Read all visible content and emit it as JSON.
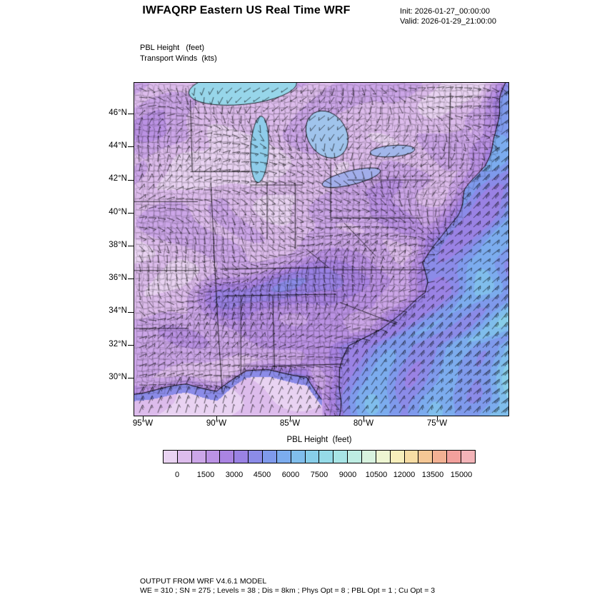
{
  "header": {
    "title": "IWFAQRP Eastern US Real Time WRF",
    "init_line": "Init: 2026-01-27_00:00:00",
    "valid_line": "Valid: 2026-01-29_21:00:00"
  },
  "map": {
    "field_label": "PBL Height   (feet)",
    "wind_label": "Transport Winds  (kts)",
    "lat_ticks": [
      "46°N",
      "44°N",
      "42°N",
      "40°N",
      "38°N",
      "36°N",
      "34°N",
      "32°N",
      "30°N"
    ],
    "lon_ticks": [
      "95°W",
      "90°W",
      "85°W",
      "80°W",
      "75°W"
    ]
  },
  "colorbar": {
    "title": "PBL Height  (feet)",
    "tick_labels": [
      "0",
      "1500",
      "3000",
      "4500",
      "6000",
      "7500",
      "9000",
      "10500",
      "12000",
      "13500",
      "15000"
    ],
    "colors": [
      "#E9D3F2",
      "#DDBCEC",
      "#CCA6E8",
      "#BB92E4",
      "#AA84E2",
      "#9A82E4",
      "#8B8BE8",
      "#7F9AEC",
      "#7CACEE",
      "#80BEEC",
      "#88CEE9",
      "#95DBE8",
      "#A7E5E6",
      "#BEEDE3",
      "#D8F3DF",
      "#EEF6D2",
      "#F7EFBB",
      "#F7DDA4",
      "#F5C795",
      "#F3B193",
      "#F2A09C",
      "#F3B4B8"
    ]
  },
  "footer": {
    "line1": "OUTPUT FROM WRF V4.6.1 MODEL",
    "line2": "WE = 310 ; SN = 275 ; Levels = 38 ; Dis = 8km ; Phys Opt = 8 ; PBL Opt = 1 ; Cu Opt = 3"
  },
  "chart_data": {
    "type": "heatmap",
    "title": "IWFAQRP Eastern US Real Time WRF",
    "fields": [
      "PBL Height (feet) - filled contours",
      "Transport Winds (kts) - wind barbs"
    ],
    "init_time": "2026-01-27_00:00:00",
    "valid_time": "2026-01-29_21:00:00",
    "x_ticks": [
      "95°W",
      "90°W",
      "85°W",
      "80°W",
      "75°W"
    ],
    "y_ticks": [
      "46°N",
      "44°N",
      "42°N",
      "40°N",
      "38°N",
      "36°N",
      "34°N",
      "32°N",
      "30°N"
    ],
    "colorbar_label": "PBL Height  (feet)",
    "contour_levels_ft": [
      0,
      750,
      1500,
      2250,
      3000,
      3750,
      4500,
      5250,
      6000,
      6750,
      7500,
      8250,
      9000,
      9750,
      10500,
      11250,
      12000,
      12750,
      13500,
      14250,
      15000
    ],
    "displayed_range_ft": [
      0,
      6000
    ],
    "regions": [
      {
        "area": "Upper Midwest / Great Lakes / interior Northeast land",
        "approx_pbl_ft": "500-2000 (purple shades)"
      },
      {
        "area": "Ohio Valley / mid-South cyan band",
        "approx_pbl_ft": "3000-5000"
      },
      {
        "area": "Atlantic offshore southeast of coastline",
        "approx_pbl_ft": "3500-6000 (cyan with pale streaks)"
      },
      {
        "area": "Gulf coast / bottom-left corner water",
        "approx_pbl_ft": "0-1500 (pale violet)"
      }
    ],
    "winds": {
      "land": "variable direction, roughly 5-20 kts (dense chaotic barbs)",
      "offshore_atlantic": "organized southwesterly flow, roughly 20-35 kts"
    },
    "model_info": "OUTPUT FROM WRF V4.6.1 MODEL ; WE = 310 ; SN = 275 ; Levels = 38 ; Dis = 8km ; Phys Opt = 8 ; PBL Opt = 1 ; Cu Opt = 3"
  }
}
